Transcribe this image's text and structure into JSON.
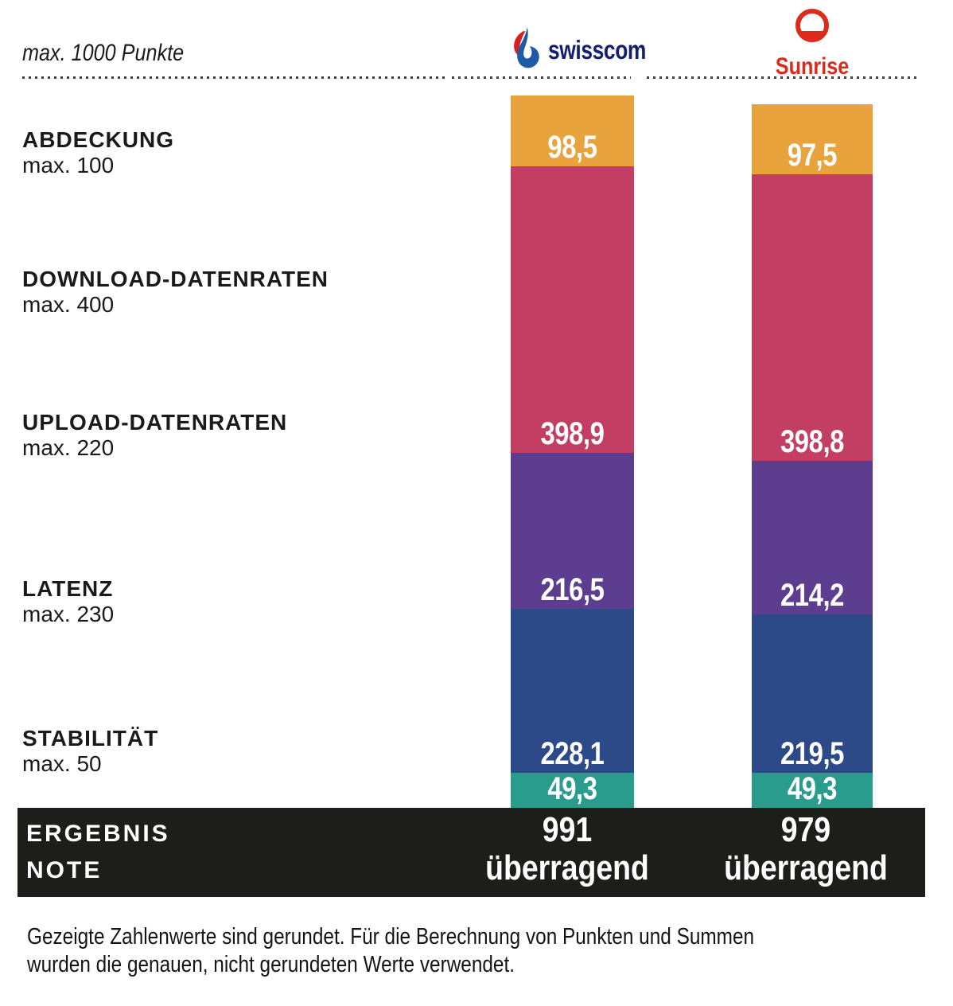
{
  "header": {
    "title": "max. 1000 Punkte",
    "providers": [
      {
        "name": "Swisscom",
        "wordmark": "swisscom",
        "brand_color": "#121E6E"
      },
      {
        "name": "Sunrise",
        "wordmark": "Sunrise",
        "brand_color": "#DC2A1B"
      }
    ]
  },
  "chart_data": {
    "type": "bar",
    "stacked": true,
    "title": "max. 1000 Punkte",
    "max_total": 1000,
    "categories": [
      "ABDECKUNG",
      "DOWNLOAD-DATENRATEN",
      "UPLOAD-DATENRATEN",
      "LATENZ",
      "STABILITÄT"
    ],
    "category_max_labels": [
      "max. 100",
      "max. 400",
      "max. 220",
      "max. 230",
      "max. 50"
    ],
    "category_max": [
      100,
      400,
      220,
      230,
      50
    ],
    "segment_colors": [
      "#E8A33C",
      "#C23E63",
      "#5C3D8F",
      "#2B4A87",
      "#2A9C8E"
    ],
    "series": [
      {
        "name": "Swisscom",
        "values": [
          98.5,
          398.9,
          216.5,
          228.1,
          49.3
        ],
        "value_labels": [
          "98,5",
          "398,9",
          "216,5",
          "228,1",
          "49,3"
        ],
        "total": 991,
        "grade": "überragend"
      },
      {
        "name": "Sunrise",
        "values": [
          97.5,
          398.8,
          214.2,
          219.5,
          49.3
        ],
        "value_labels": [
          "97,5",
          "398,8",
          "214,2",
          "219,5",
          "49,3"
        ],
        "total": 979,
        "grade": "überragend"
      }
    ],
    "legend_position": "left",
    "grid": false
  },
  "results": {
    "row1": "ERGEBNIS",
    "row2": "NOTE"
  },
  "footer": {
    "line1": "Gezeigte Zahlenwerte sind gerundet. Für die Berechnung von Punkten und Summen",
    "line2": "wurden die genauen, nicht gerundeten Werte verwendet."
  }
}
